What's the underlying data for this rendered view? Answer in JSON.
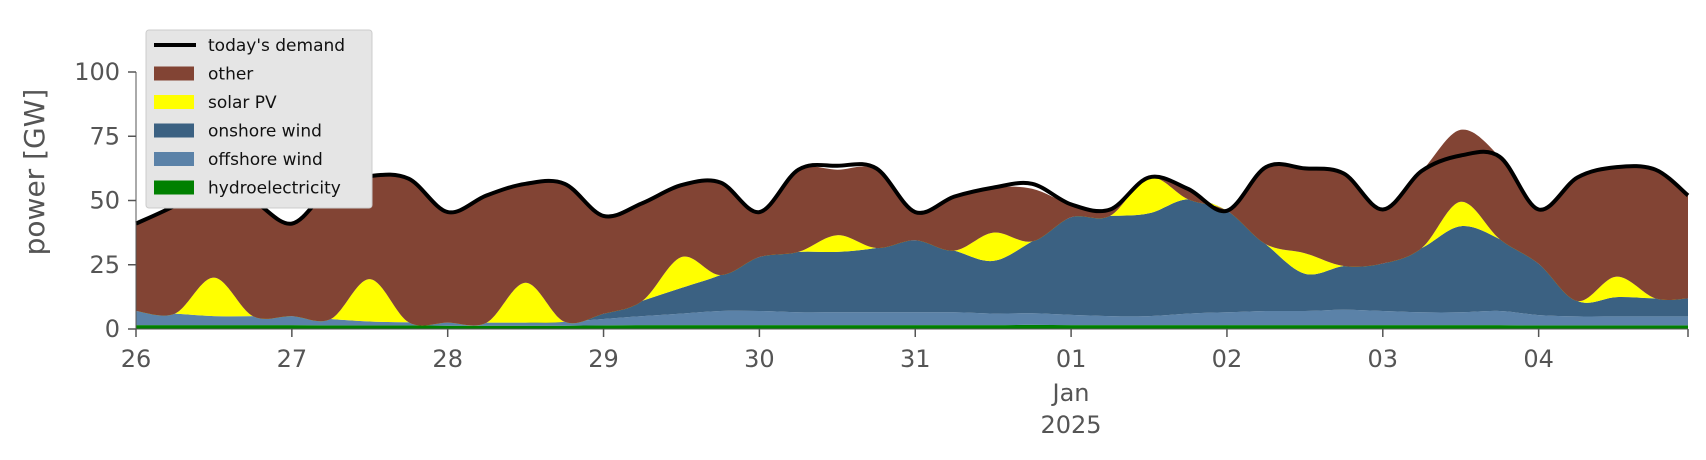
{
  "chart_data": {
    "type": "area",
    "title": "",
    "xlabel": "",
    "ylabel": "power [GW]",
    "ylim": [
      0,
      120
    ],
    "y_ticks": [
      0,
      25,
      50,
      75,
      100
    ],
    "x_range": [
      "2024-12-26 00:00",
      "2025-01-04 23:00"
    ],
    "x_ticks": [
      "26",
      "27",
      "28",
      "29",
      "30",
      "31",
      "01",
      "02",
      "03",
      "04"
    ],
    "x_tick_dates": [
      "2024-12-26",
      "2024-12-27",
      "2024-12-28",
      "2024-12-29",
      "2024-12-30",
      "2024-12-31",
      "2025-01-01",
      "2025-01-02",
      "2025-01-03",
      "2025-01-04"
    ],
    "x_month_label": "Jan",
    "x_year_label": "2025",
    "grid": false,
    "legend_position": "top-left",
    "stacking_order": [
      "hydroelectricity",
      "offshore wind",
      "onshore wind",
      "solar PV",
      "other"
    ],
    "x": [
      "2024-12-26 00:00",
      "2024-12-26 06:00",
      "2024-12-26 12:00",
      "2024-12-26 18:00",
      "2024-12-27 00:00",
      "2024-12-27 06:00",
      "2024-12-27 12:00",
      "2024-12-27 18:00",
      "2024-12-28 00:00",
      "2024-12-28 06:00",
      "2024-12-28 12:00",
      "2024-12-28 18:00",
      "2024-12-29 00:00",
      "2024-12-29 06:00",
      "2024-12-29 12:00",
      "2024-12-29 18:00",
      "2024-12-30 00:00",
      "2024-12-30 06:00",
      "2024-12-30 12:00",
      "2024-12-30 18:00",
      "2024-12-31 00:00",
      "2024-12-31 06:00",
      "2024-12-31 12:00",
      "2024-12-31 18:00",
      "2025-01-01 00:00",
      "2025-01-01 06:00",
      "2025-01-01 12:00",
      "2025-01-01 18:00",
      "2025-01-02 00:00",
      "2025-01-02 06:00",
      "2025-01-02 12:00",
      "2025-01-02 18:00",
      "2025-01-03 00:00",
      "2025-01-03 06:00",
      "2025-01-03 12:00",
      "2025-01-03 18:00",
      "2025-01-04 00:00",
      "2025-01-04 06:00",
      "2025-01-04 12:00",
      "2025-01-04 18:00",
      "2025-01-04 23:00"
    ],
    "series": [
      {
        "name": "hydroelectricity",
        "color": "#008000",
        "values": [
          1.5,
          1.5,
          1.5,
          1.5,
          1.5,
          1.4,
          1.4,
          1.4,
          1.3,
          1.3,
          1.3,
          1.3,
          1.4,
          1.5,
          1.5,
          1.5,
          1.5,
          1.5,
          1.5,
          1.5,
          1.5,
          1.5,
          1.5,
          1.6,
          1.5,
          1.5,
          1.5,
          1.5,
          1.5,
          1.5,
          1.5,
          1.5,
          1.5,
          1.5,
          1.5,
          1.5,
          1.4,
          1.4,
          1.4,
          1.4,
          1.4
        ]
      },
      {
        "name": "offshore wind",
        "color": "#5b82a8",
        "values": [
          5.5,
          4.5,
          3.5,
          3.5,
          3.5,
          2.5,
          1.5,
          1.2,
          1.2,
          1.2,
          1.2,
          1.5,
          2.5,
          3.5,
          4.5,
          5.5,
          5.5,
          5.0,
          5.0,
          5.0,
          5.0,
          5.0,
          4.5,
          4.5,
          4.0,
          3.5,
          3.5,
          4.5,
          5.0,
          5.5,
          5.5,
          6.0,
          5.5,
          5.0,
          5.0,
          5.5,
          4.0,
          3.5,
          3.5,
          3.5,
          3.5
        ]
      },
      {
        "name": "onshore wind",
        "color": "#3b6182",
        "values": [
          0.0,
          0.0,
          0.0,
          0.0,
          0.0,
          0.0,
          0.0,
          0.0,
          0.0,
          0.0,
          0.0,
          0.0,
          2.0,
          6.0,
          10.0,
          14.0,
          21.0,
          23.5,
          23.5,
          25.0,
          28.0,
          24.0,
          20.5,
          28.0,
          38.0,
          39.0,
          40.0,
          44.5,
          39.5,
          26.0,
          14.5,
          17.0,
          18.5,
          25.0,
          33.5,
          28.0,
          20.0,
          6.0,
          7.5,
          7.0,
          7.0
        ]
      },
      {
        "name": "solar PV",
        "color": "#ffff00",
        "values": [
          0.0,
          0.0,
          15.0,
          0.0,
          0.0,
          0.0,
          16.5,
          0.0,
          0.0,
          0.0,
          15.5,
          0.0,
          0.0,
          0.0,
          12.0,
          0.0,
          0.0,
          0.0,
          6.5,
          0.0,
          0.0,
          0.0,
          11.0,
          0.0,
          0.0,
          0.0,
          14.0,
          0.0,
          0.0,
          0.0,
          8.0,
          0.0,
          0.0,
          0.0,
          9.5,
          0.0,
          0.0,
          0.0,
          8.0,
          0.0,
          0.0
        ]
      },
      {
        "name": "other",
        "color": "#824434",
        "values": [
          34.0,
          42.0,
          36.0,
          45.0,
          36.0,
          51.0,
          40.0,
          56.0,
          43.0,
          49.0,
          38.0,
          54.0,
          38.0,
          38.0,
          28.0,
          36.0,
          17.5,
          32.0,
          25.5,
          30.5,
          10.5,
          21.0,
          17.5,
          20.5,
          5.0,
          2.5,
          0.0,
          4.0,
          0.0,
          30.0,
          33.0,
          36.0,
          21.5,
          30.0,
          28.0,
          32.0,
          21.0,
          48.0,
          43.0,
          50.0,
          40.0
        ]
      }
    ],
    "demand": {
      "name": "today's demand",
      "color": "#000000",
      "values": [
        41.0,
        48.0,
        56.5,
        50.0,
        41.0,
        55.0,
        59.5,
        58.5,
        45.5,
        52.0,
        56.5,
        56.5,
        44.0,
        49.0,
        56.0,
        57.0,
        45.5,
        62.0,
        63.5,
        62.5,
        45.5,
        51.5,
        55.0,
        56.5,
        48.5,
        46.5,
        59.0,
        54.5,
        46.0,
        63.0,
        62.5,
        60.5,
        46.5,
        61.5,
        67.5,
        67.0,
        46.5,
        59.0,
        63.0,
        62.0,
        52.0
      ]
    },
    "legend": [
      {
        "label": "today's demand",
        "kind": "line",
        "color": "#000000"
      },
      {
        "label": "other",
        "kind": "patch",
        "color": "#824434"
      },
      {
        "label": "solar PV",
        "kind": "patch",
        "color": "#ffff00"
      },
      {
        "label": "onshore wind",
        "kind": "patch",
        "color": "#3b6182"
      },
      {
        "label": "offshore wind",
        "kind": "patch",
        "color": "#5b82a8"
      },
      {
        "label": "hydroelectricity",
        "kind": "patch",
        "color": "#008000"
      }
    ]
  }
}
